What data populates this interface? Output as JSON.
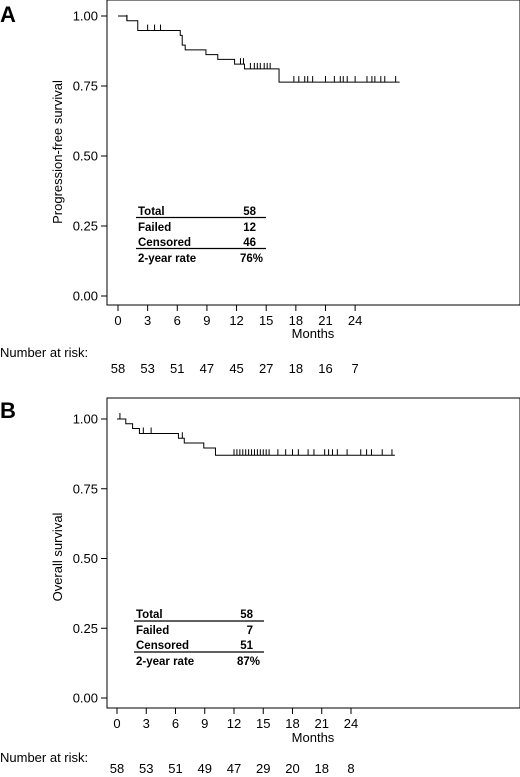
{
  "chart_data": [
    {
      "panel": "A",
      "type": "line",
      "ylabel": "Progression-free survival",
      "xlabel": "Months",
      "ylim": [
        0,
        1.0
      ],
      "xlim": [
        -1,
        29
      ],
      "yticks": [
        "0.00",
        "0.25",
        "0.50",
        "0.75",
        "1.00"
      ],
      "xticks": [
        "0",
        "3",
        "6",
        "9",
        "12",
        "15",
        "18",
        "21",
        "24"
      ],
      "series": [
        {
          "steps": [
            [
              0,
              1.0
            ],
            [
              0.9,
              0.983
            ],
            [
              2.0,
              0.948
            ],
            [
              6.3,
              0.931
            ],
            [
              6.5,
              0.896
            ],
            [
              6.8,
              0.879
            ],
            [
              8.9,
              0.862
            ],
            [
              10.1,
              0.845
            ],
            [
              11.8,
              0.828
            ],
            [
              12.8,
              0.811
            ],
            [
              16.3,
              0.793
            ],
            [
              16.3,
              0.764
            ],
            [
              28.5,
              0.764
            ]
          ],
          "censored": [
            0.9,
            3.0,
            3.7,
            4.3,
            12.4,
            12.7,
            13.4,
            13.8,
            14.1,
            14.4,
            14.8,
            15.1,
            15.4,
            17.8,
            18.3,
            18.9,
            19.2,
            19.7,
            21.0,
            21.9,
            22.5,
            22.8,
            23.2,
            24.0,
            25.2,
            25.7,
            26.0,
            26.6,
            27.0,
            28.1
          ]
        }
      ],
      "stats_table": [
        {
          "label": "Total",
          "value": "58"
        },
        {
          "label": "Failed",
          "value": "12"
        },
        {
          "label": "Censored",
          "value": "46"
        },
        {
          "label": "2-year rate",
          "value": "76%"
        }
      ],
      "risk_label": "Number at risk:",
      "at_risk": [
        "58",
        "53",
        "51",
        "47",
        "45",
        "27",
        "18",
        "16",
        "7"
      ]
    },
    {
      "panel": "B",
      "type": "line",
      "ylabel": "Overall survival",
      "xlabel": "Months",
      "ylim": [
        0,
        1.0
      ],
      "xlim": [
        -1,
        29
      ],
      "yticks": [
        "0.00",
        "0.25",
        "0.50",
        "0.75",
        "1.00"
      ],
      "xticks": [
        "0",
        "3",
        "6",
        "9",
        "12",
        "15",
        "18",
        "21",
        "24"
      ],
      "series": [
        {
          "steps": [
            [
              0,
              1.0
            ],
            [
              0.9,
              0.983
            ],
            [
              1.6,
              0.966
            ],
            [
              2.3,
              0.948
            ],
            [
              6.3,
              0.931
            ],
            [
              6.9,
              0.914
            ],
            [
              8.9,
              0.896
            ],
            [
              10.1,
              0.879
            ],
            [
              10.1,
              0.87
            ],
            [
              28.5,
              0.87
            ]
          ],
          "censored": [
            0.3,
            2.7,
            3.5,
            6.7,
            12.0,
            12.3,
            12.6,
            12.9,
            13.2,
            13.5,
            13.8,
            14.1,
            14.4,
            14.7,
            15.0,
            15.3,
            15.6,
            16.5,
            17.3,
            18.0,
            18.6,
            19.6,
            20.2,
            21.3,
            21.7,
            22.1,
            22.6,
            23.6,
            25.0,
            25.6,
            26.1,
            27.2,
            28.2
          ]
        }
      ],
      "stats_table": [
        {
          "label": "Total",
          "value": "58"
        },
        {
          "label": "Failed",
          "value": "7"
        },
        {
          "label": "Censored",
          "value": "51"
        },
        {
          "label": "2-year rate",
          "value": "87%"
        }
      ],
      "risk_label": "Number at risk:",
      "at_risk": [
        "58",
        "53",
        "51",
        "49",
        "47",
        "29",
        "20",
        "18",
        "8"
      ]
    }
  ]
}
